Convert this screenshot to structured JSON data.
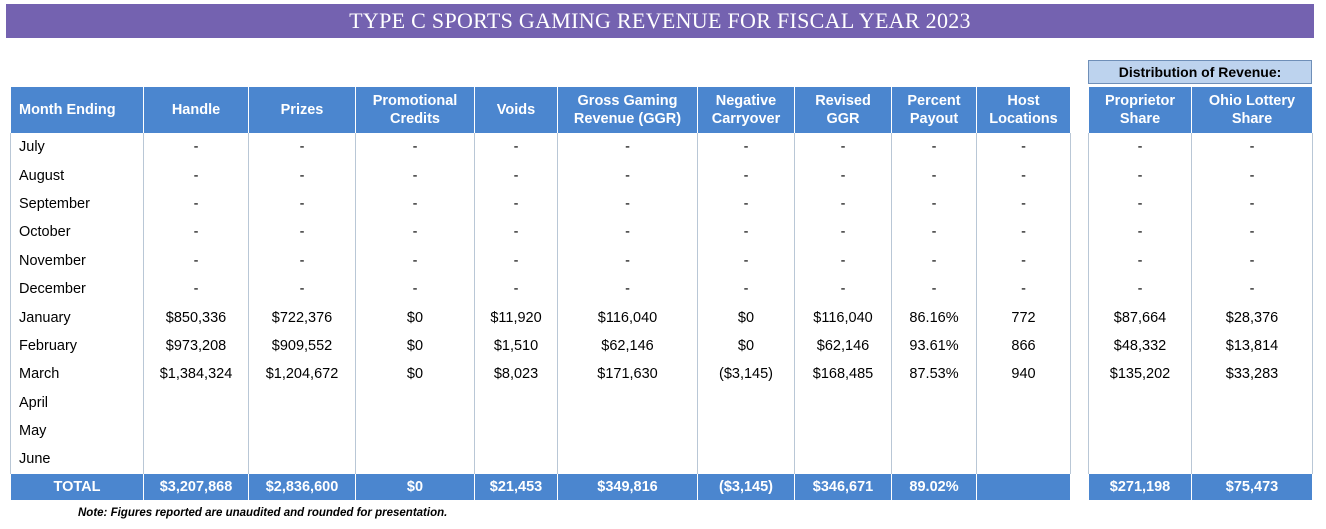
{
  "title": "TYPE C SPORTS GAMING REVENUE FOR FISCAL YEAR 2023",
  "distribution_label": "Distribution of Revenue:",
  "columns": [
    "Month Ending",
    "Handle",
    "Prizes",
    "Promotional Credits",
    "Voids",
    "Gross Gaming Revenue (GGR)",
    "Negative Carryover",
    "Revised GGR",
    "Percent Payout",
    "Host Locations"
  ],
  "dist_columns": [
    "Proprietor Share",
    "Ohio Lottery Share"
  ],
  "rows": [
    {
      "month": "July",
      "cells": [
        "-",
        "-",
        "-",
        "-",
        "-",
        "-",
        "-",
        "-",
        "-"
      ],
      "dist": [
        "-",
        "-"
      ]
    },
    {
      "month": "August",
      "cells": [
        "-",
        "-",
        "-",
        "-",
        "-",
        "-",
        "-",
        "-",
        "-"
      ],
      "dist": [
        "-",
        "-"
      ]
    },
    {
      "month": "September",
      "cells": [
        "-",
        "-",
        "-",
        "-",
        "-",
        "-",
        "-",
        "-",
        "-"
      ],
      "dist": [
        "-",
        "-"
      ]
    },
    {
      "month": "October",
      "cells": [
        "-",
        "-",
        "-",
        "-",
        "-",
        "-",
        "-",
        "-",
        "-"
      ],
      "dist": [
        "-",
        "-"
      ]
    },
    {
      "month": "November",
      "cells": [
        "-",
        "-",
        "-",
        "-",
        "-",
        "-",
        "-",
        "-",
        "-"
      ],
      "dist": [
        "-",
        "-"
      ]
    },
    {
      "month": "December",
      "cells": [
        "-",
        "-",
        "-",
        "-",
        "-",
        "-",
        "-",
        "-",
        "-"
      ],
      "dist": [
        "-",
        "-"
      ]
    },
    {
      "month": "January",
      "cells": [
        "$850,336",
        "$722,376",
        "$0",
        "$11,920",
        "$116,040",
        "$0",
        "$116,040",
        "86.16%",
        "772"
      ],
      "dist": [
        "$87,664",
        "$28,376"
      ]
    },
    {
      "month": "February",
      "cells": [
        "$973,208",
        "$909,552",
        "$0",
        "$1,510",
        "$62,146",
        "$0",
        "$62,146",
        "93.61%",
        "866"
      ],
      "dist": [
        "$48,332",
        "$13,814"
      ]
    },
    {
      "month": "March",
      "cells": [
        "$1,384,324",
        "$1,204,672",
        "$0",
        "$8,023",
        "$171,630",
        "($3,145)",
        "$168,485",
        "87.53%",
        "940"
      ],
      "dist": [
        "$135,202",
        "$33,283"
      ]
    },
    {
      "month": "April",
      "cells": [
        "",
        "",
        "",
        "",
        "",
        "",
        "",
        "",
        ""
      ],
      "dist": [
        "",
        ""
      ]
    },
    {
      "month": "May",
      "cells": [
        "",
        "",
        "",
        "",
        "",
        "",
        "",
        "",
        ""
      ],
      "dist": [
        "",
        ""
      ]
    },
    {
      "month": "June",
      "cells": [
        "",
        "",
        "",
        "",
        "",
        "",
        "",
        "",
        ""
      ],
      "dist": [
        "",
        ""
      ]
    }
  ],
  "total": {
    "label": "TOTAL",
    "cells": [
      "$3,207,868",
      "$2,836,600",
      "$0",
      "$21,453",
      "$349,816",
      "($3,145)",
      "$346,671",
      "89.02%",
      ""
    ],
    "dist": [
      "$271,198",
      "$75,473"
    ]
  },
  "note": "Note: Figures reported are unaudited and rounded for presentation."
}
